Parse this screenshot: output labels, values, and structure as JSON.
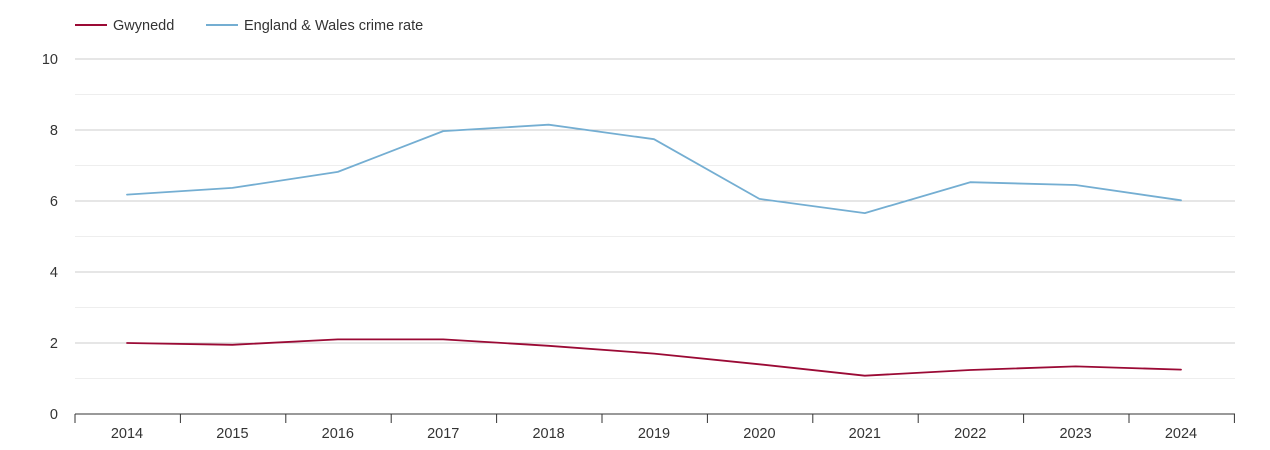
{
  "chart_data": {
    "type": "line",
    "title": "",
    "xlabel": "",
    "ylabel": "",
    "categories": [
      "2014",
      "2015",
      "2016",
      "2017",
      "2018",
      "2019",
      "2020",
      "2021",
      "2022",
      "2023",
      "2024"
    ],
    "ylim": [
      0,
      10
    ],
    "yticks": [
      0,
      2,
      4,
      6,
      8,
      10
    ],
    "ytick_labels": [
      "0",
      "2",
      "4",
      "6",
      "8",
      "10"
    ],
    "minor_gridlines": [
      1,
      3,
      5,
      7,
      9
    ],
    "grid": true,
    "legend_position": "top-left",
    "series": [
      {
        "name": "Gwynedd",
        "color": "#9b0a35",
        "values": [
          2.0,
          1.95,
          2.1,
          2.1,
          1.92,
          1.7,
          1.4,
          1.08,
          1.24,
          1.34,
          1.25
        ]
      },
      {
        "name": "England & Wales crime rate",
        "color": "#74aed2",
        "values": [
          6.18,
          6.37,
          6.82,
          7.97,
          8.15,
          7.74,
          6.06,
          5.66,
          6.53,
          6.45,
          6.02
        ]
      }
    ]
  }
}
